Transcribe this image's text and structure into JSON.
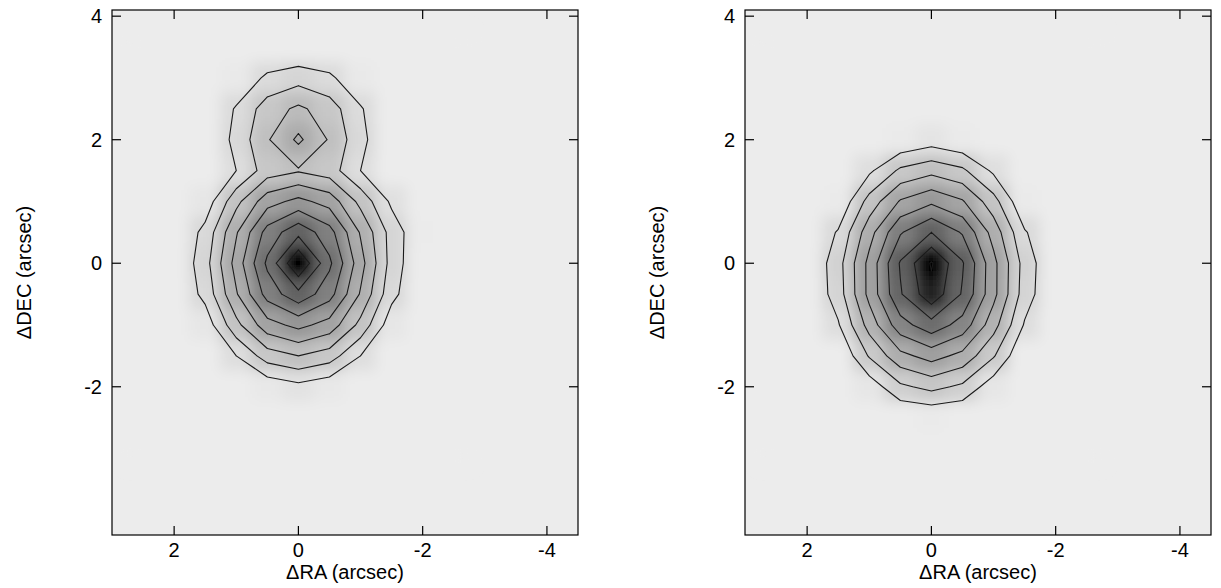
{
  "chart_data": [
    {
      "type": "contour",
      "x_label": "ΔRA (arcsec)",
      "y_label": "ΔDEC (arcsec)",
      "xlim": [
        3,
        -4.5
      ],
      "ylim": [
        -4.4,
        4.1
      ],
      "xticks": [
        2,
        0,
        -2,
        -4
      ],
      "yticks": [
        -2,
        0,
        2,
        4
      ],
      "levels": [
        1,
        2,
        3,
        4,
        5,
        6,
        7,
        8,
        9
      ],
      "x": [
        2.5,
        2,
        1.5,
        1,
        0.5,
        0,
        -0.5,
        -1,
        -1.5,
        -2,
        -2.5
      ],
      "y": [
        3.5,
        3,
        2.5,
        2,
        1.5,
        1,
        0.5,
        0,
        -0.5,
        -1,
        -1.5,
        -2,
        -2.5,
        -3
      ],
      "cells": [
        [
          0,
          0,
          0,
          0,
          0,
          0,
          0,
          0,
          0,
          0,
          0
        ],
        [
          0,
          0,
          0,
          0.2,
          1.2,
          1.6,
          1.2,
          0.2,
          0,
          0,
          0
        ],
        [
          0,
          0,
          0,
          1.1,
          2.5,
          3.2,
          2.5,
          1.1,
          0,
          0,
          0
        ],
        [
          0,
          0,
          0,
          1.3,
          2.9,
          4.2,
          2.9,
          1.3,
          0,
          0,
          0
        ],
        [
          0,
          0,
          0,
          1.0,
          2.5,
          2.9,
          2.5,
          1.0,
          0,
          0,
          0
        ],
        [
          0,
          0,
          0.4,
          2.7,
          4.6,
          5.3,
          4.6,
          2.7,
          0.8,
          0,
          0
        ],
        [
          0,
          0,
          1.3,
          3.9,
          6.4,
          7.7,
          6.4,
          3.9,
          1.6,
          0.1,
          0
        ],
        [
          0,
          0,
          1.6,
          4.4,
          7.2,
          10,
          7.2,
          4.4,
          1.6,
          0,
          0
        ],
        [
          0,
          0,
          1.3,
          3.9,
          6.4,
          7.7,
          6.4,
          3.9,
          1.3,
          0,
          0
        ],
        [
          0,
          0,
          0.4,
          2.7,
          4.6,
          5.3,
          4.6,
          2.7,
          0.4,
          0,
          0
        ],
        [
          0,
          0,
          0,
          1.0,
          2.5,
          3.0,
          2.5,
          1.0,
          0,
          0,
          0
        ],
        [
          0,
          0,
          0,
          0,
          0.3,
          0.7,
          0.3,
          0,
          0,
          0,
          0
        ],
        [
          0,
          0,
          0,
          0,
          0,
          0,
          0,
          0,
          0,
          0,
          0
        ],
        [
          0,
          0,
          0,
          0,
          0,
          0,
          0,
          0,
          0,
          0,
          0
        ]
      ]
    },
    {
      "type": "contour",
      "x_label": "ΔRA (arcsec)",
      "y_label": "ΔDEC (arcsec)",
      "xlim": [
        3,
        -4.5
      ],
      "ylim": [
        -4.4,
        4.1
      ],
      "xticks": [
        2,
        0,
        -2,
        -4
      ],
      "yticks": [
        -2,
        0,
        2,
        4
      ],
      "levels": [
        1,
        2,
        3,
        4,
        5,
        6,
        7,
        8,
        9
      ],
      "x": [
        2.5,
        2,
        1.5,
        1,
        0.5,
        0,
        -0.5,
        -1,
        -1.5,
        -2,
        -2.5
      ],
      "y": [
        3.5,
        3,
        2.5,
        2,
        1.5,
        1,
        0.5,
        0,
        -0.5,
        -1,
        -1.5,
        -2,
        -2.5,
        -3
      ],
      "cells": [
        [
          0,
          0,
          0,
          0,
          0,
          0,
          0,
          0,
          0,
          0,
          0
        ],
        [
          0,
          0,
          0,
          0,
          0,
          0,
          0,
          0,
          0,
          0,
          0
        ],
        [
          0,
          0,
          0,
          0,
          0,
          0,
          0,
          0,
          0,
          0,
          0
        ],
        [
          0,
          0,
          0,
          0,
          0.1,
          0.5,
          0.1,
          0,
          0,
          0,
          0
        ],
        [
          0,
          0,
          0,
          0.8,
          2.2,
          2.7,
          2.2,
          0.8,
          0,
          0,
          0
        ],
        [
          0,
          0,
          0.1,
          2.4,
          4.1,
          4.8,
          4.1,
          2.4,
          0.1,
          0,
          0
        ],
        [
          0,
          0,
          1.1,
          3.6,
          5.9,
          7.0,
          5.9,
          3.6,
          1.1,
          0,
          0
        ],
        [
          0,
          0,
          1.6,
          4.3,
          7.1,
          9.1,
          7.1,
          4.3,
          1.6,
          0,
          0
        ],
        [
          0,
          0,
          1.5,
          4.3,
          6.9,
          8.7,
          6.9,
          4.3,
          1.5,
          0,
          0
        ],
        [
          0,
          0,
          0.9,
          3.4,
          5.6,
          6.6,
          5.6,
          3.4,
          0.9,
          0,
          0
        ],
        [
          0,
          0,
          0,
          2.1,
          3.7,
          4.4,
          3.7,
          2.1,
          0,
          0,
          0
        ],
        [
          0,
          0,
          0,
          0.4,
          1.8,
          2.3,
          1.8,
          0.4,
          0,
          0,
          0
        ],
        [
          0,
          0,
          0,
          0,
          0,
          0.1,
          0,
          0,
          0,
          0,
          0
        ],
        [
          0,
          0,
          0,
          0,
          0,
          0,
          0,
          0,
          0,
          0,
          0
        ]
      ]
    }
  ]
}
